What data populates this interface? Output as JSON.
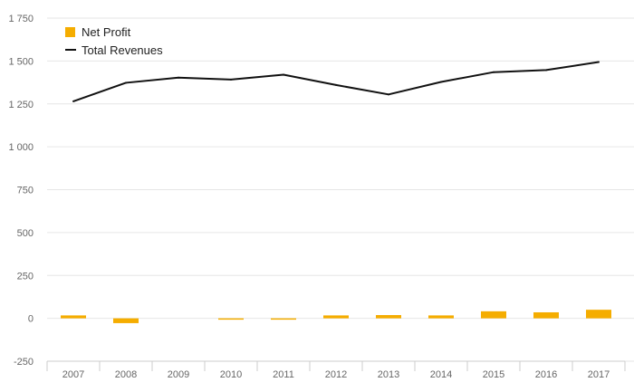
{
  "chart_data": {
    "type": "bar",
    "title": "",
    "xlabel": "",
    "ylabel": "",
    "categories": [
      "2007",
      "2008",
      "2009",
      "2010",
      "2011",
      "2012",
      "2013",
      "2014",
      "2015",
      "2016",
      "2017"
    ],
    "ylim": [
      -250,
      1750
    ],
    "yticks": [
      -250,
      0,
      250,
      500,
      750,
      1000,
      1250,
      1500,
      1750
    ],
    "ytick_labels": [
      "-250",
      "0",
      "250",
      "500",
      "750",
      "1 000",
      "1 250",
      "1 500",
      "1 750"
    ],
    "grid": true,
    "legend_position": "top-left",
    "series": [
      {
        "name": "Net Profit",
        "type": "bar",
        "color": "#f5ad00",
        "values": [
          17,
          -28,
          0,
          -6,
          -4,
          17,
          19,
          17,
          41,
          35,
          50
        ]
      },
      {
        "name": "Total Revenues",
        "type": "line",
        "color": "#111111",
        "values": [
          1265,
          1373,
          1403,
          1392,
          1420,
          1360,
          1305,
          1378,
          1435,
          1447,
          1494
        ]
      }
    ]
  }
}
